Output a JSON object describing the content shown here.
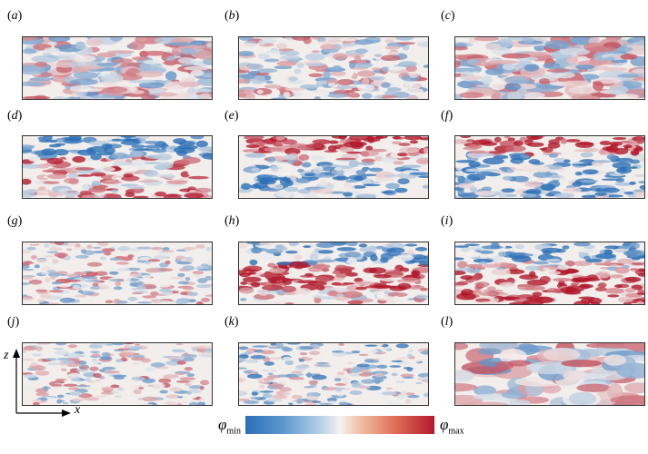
{
  "panels": [
    {
      "label": "a",
      "seed": 11,
      "mode": "mixed"
    },
    {
      "label": "b",
      "seed": 23,
      "mode": "fine"
    },
    {
      "label": "c",
      "seed": 37,
      "mode": "blobs"
    },
    {
      "label": "d",
      "seed": 41,
      "mode": "band-blue-top"
    },
    {
      "label": "e",
      "seed": 53,
      "mode": "band-red-top"
    },
    {
      "label": "f",
      "seed": 67,
      "mode": "band-red-top-strong"
    },
    {
      "label": "g",
      "seed": 71,
      "mode": "fine-mixed"
    },
    {
      "label": "h",
      "seed": 83,
      "mode": "band-red-mid"
    },
    {
      "label": "i",
      "seed": 97,
      "mode": "band-red-low"
    },
    {
      "label": "j",
      "seed": 101,
      "mode": "fine-mixed"
    },
    {
      "label": "k",
      "seed": 113,
      "mode": "fine-blue"
    },
    {
      "label": "l",
      "seed": 127,
      "mode": "large-blobs"
    }
  ],
  "axes": {
    "x_label": "x",
    "z_label": "z"
  },
  "colorbar": {
    "min_label": "φ",
    "min_sub": "min",
    "max_label": "φ",
    "max_sub": "max",
    "min_color": "#2c6fb7",
    "mid_color": "#f4f2f0",
    "max_color": "#b2182b"
  }
}
